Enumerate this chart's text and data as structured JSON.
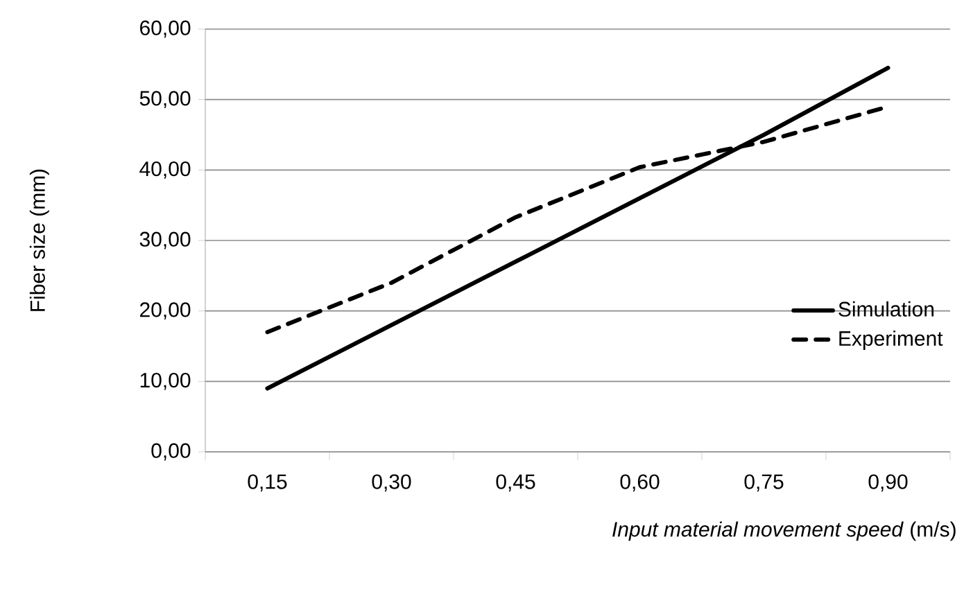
{
  "chart_data": {
    "type": "line",
    "xlabel": "*Input material movement speed* (m/s)",
    "ylabel": "Fiber size (mm)",
    "categories": [
      "0,15",
      "0,30",
      "0,45",
      "0,60",
      "0,75",
      "0,90"
    ],
    "series": [
      {
        "name": "Simulation",
        "color": "#000000",
        "line_style": "solid",
        "values": [
          9,
          18,
          27,
          36,
          45,
          54.5
        ]
      },
      {
        "name": "Experiment",
        "color": "#000000",
        "line_style": "dashed",
        "values": [
          17,
          24,
          33.3,
          40.4,
          44,
          49
        ]
      }
    ],
    "ylim": [
      0,
      60
    ],
    "yticks": [
      {
        "value": 0,
        "label": "0,00"
      },
      {
        "value": 10,
        "label": "10,00"
      },
      {
        "value": 20,
        "label": "20,00"
      },
      {
        "value": 30,
        "label": "30,00"
      },
      {
        "value": 40,
        "label": "40,00"
      },
      {
        "value": 50,
        "label": "50,00"
      },
      {
        "value": 60,
        "label": "60,00"
      }
    ],
    "grid": "y",
    "legend": "right",
    "marker": "none"
  }
}
